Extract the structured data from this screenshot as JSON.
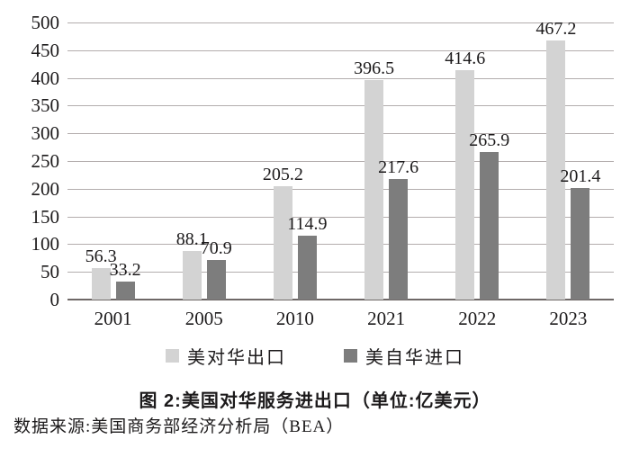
{
  "chart_data": {
    "type": "bar",
    "categories": [
      "2001",
      "2005",
      "2010",
      "2021",
      "2022",
      "2023"
    ],
    "series": [
      {
        "name": "美对华出口",
        "color": "#d3d3d3",
        "values": [
          56.3,
          88.1,
          205.2,
          396.5,
          414.6,
          467.2
        ]
      },
      {
        "name": "美自华进口",
        "color": "#7d7d7d",
        "values": [
          33.2,
          70.9,
          114.9,
          217.6,
          265.9,
          201.4
        ]
      }
    ],
    "data_labels": [
      [
        "56.3",
        "88.1",
        "205.2",
        "396.5",
        "414.6",
        "467.2"
      ],
      [
        "33.2",
        "70.9",
        "114.9",
        "217.6",
        "265.9",
        "201.4"
      ]
    ],
    "ylim": [
      0,
      500
    ],
    "ytick_step": 50,
    "ytick_labels": [
      "0",
      "50",
      "100",
      "150",
      "200",
      "250",
      "300",
      "350",
      "400",
      "450",
      "500"
    ],
    "grid": true,
    "legend_position": "bottom",
    "title": "图 2:美国对华服务进出口（单位:亿美元）",
    "source": "数据来源:美国商务部经济分析局（BEA）",
    "colors": {
      "gridline": "#b3adad",
      "axis_line": "#6e6867",
      "text": "#1c1a1b",
      "background": "#ffffff"
    }
  }
}
